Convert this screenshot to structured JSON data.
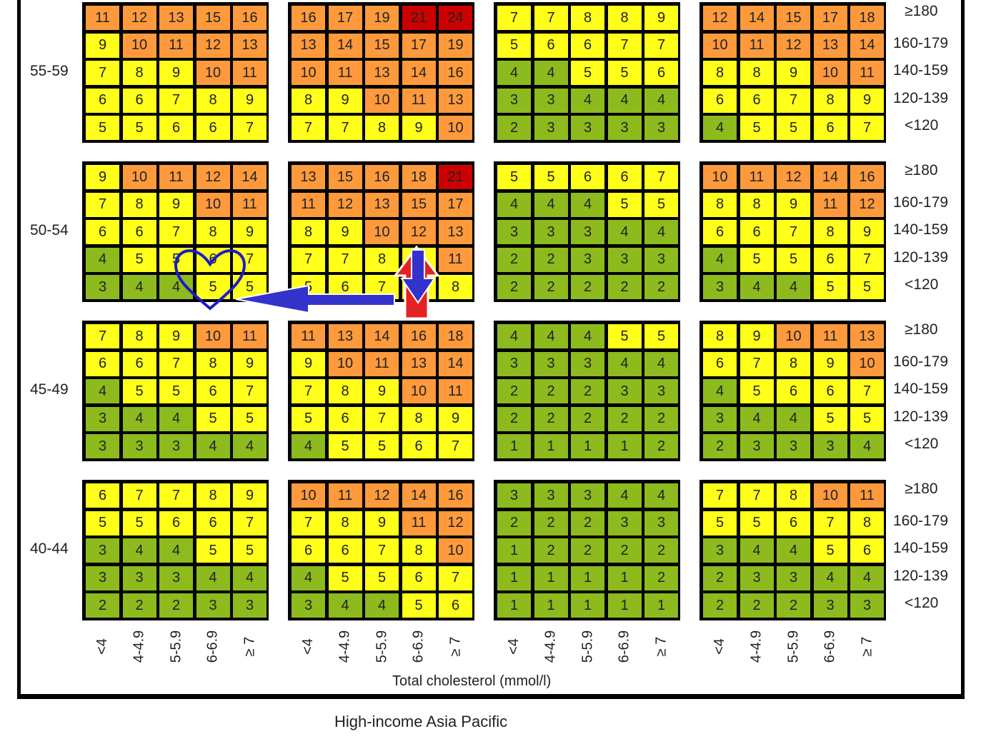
{
  "chart_data": {
    "type": "heatmap",
    "title": "",
    "caption": "High-income Asia Pacific",
    "xlabel": "Total cholesterol (mmol/l)",
    "cholesterol_categories": [
      "<4",
      "4-4.9",
      "5-5.9",
      "6-6.9",
      "≥ 7"
    ],
    "bp_categories": [
      "≥180",
      "160-179",
      "140-159",
      "120-139",
      "<120"
    ],
    "age_groups": [
      "55-59",
      "50-54",
      "45-49",
      "40-44"
    ],
    "colors": {
      "green": "#8dba1c",
      "yellow": "#ffff1a",
      "orange": "#ff9a3c",
      "red": "#cc0000"
    },
    "panels": [
      [
        [
          [
            11,
            12,
            13,
            15,
            16
          ],
          [
            9,
            10,
            11,
            12,
            13
          ],
          [
            7,
            8,
            9,
            10,
            11
          ],
          [
            6,
            6,
            7,
            8,
            9
          ],
          [
            5,
            5,
            6,
            6,
            7
          ]
        ],
        [
          [
            16,
            17,
            19,
            21,
            24
          ],
          [
            13,
            14,
            15,
            17,
            19
          ],
          [
            10,
            11,
            13,
            14,
            16
          ],
          [
            8,
            9,
            10,
            11,
            13
          ],
          [
            7,
            7,
            8,
            9,
            10
          ]
        ],
        [
          [
            7,
            7,
            8,
            8,
            9
          ],
          [
            5,
            6,
            6,
            7,
            7
          ],
          [
            4,
            4,
            5,
            5,
            6
          ],
          [
            3,
            3,
            4,
            4,
            4
          ],
          [
            2,
            3,
            3,
            3,
            3
          ]
        ],
        [
          [
            12,
            14,
            15,
            17,
            18
          ],
          [
            10,
            11,
            12,
            13,
            14
          ],
          [
            8,
            8,
            9,
            10,
            11
          ],
          [
            6,
            6,
            7,
            8,
            9
          ],
          [
            4,
            5,
            5,
            6,
            7
          ]
        ]
      ],
      [
        [
          [
            9,
            10,
            11,
            12,
            14
          ],
          [
            7,
            8,
            9,
            10,
            11
          ],
          [
            6,
            6,
            7,
            8,
            9
          ],
          [
            4,
            5,
            5,
            6,
            7
          ],
          [
            3,
            4,
            4,
            5,
            5
          ]
        ],
        [
          [
            13,
            15,
            16,
            18,
            21
          ],
          [
            11,
            12,
            13,
            15,
            17
          ],
          [
            8,
            9,
            10,
            12,
            13
          ],
          [
            7,
            7,
            8,
            9,
            11
          ],
          [
            5,
            6,
            7,
            7,
            8
          ]
        ],
        [
          [
            5,
            5,
            6,
            6,
            7
          ],
          [
            4,
            4,
            4,
            5,
            5
          ],
          [
            3,
            3,
            3,
            4,
            4
          ],
          [
            2,
            2,
            3,
            3,
            3
          ],
          [
            2,
            2,
            2,
            2,
            2
          ]
        ],
        [
          [
            10,
            11,
            12,
            14,
            16
          ],
          [
            8,
            8,
            9,
            11,
            12
          ],
          [
            6,
            6,
            7,
            8,
            9
          ],
          [
            4,
            5,
            5,
            6,
            7
          ],
          [
            3,
            4,
            4,
            5,
            5
          ]
        ]
      ],
      [
        [
          [
            7,
            8,
            9,
            10,
            11
          ],
          [
            6,
            6,
            7,
            8,
            9
          ],
          [
            4,
            5,
            5,
            6,
            7
          ],
          [
            3,
            4,
            4,
            5,
            5
          ],
          [
            3,
            3,
            3,
            4,
            4
          ]
        ],
        [
          [
            11,
            13,
            14,
            16,
            18
          ],
          [
            9,
            10,
            11,
            13,
            14
          ],
          [
            7,
            8,
            9,
            10,
            11
          ],
          [
            5,
            6,
            7,
            8,
            9
          ],
          [
            4,
            5,
            5,
            6,
            7
          ]
        ],
        [
          [
            4,
            4,
            4,
            5,
            5
          ],
          [
            3,
            3,
            3,
            4,
            4
          ],
          [
            2,
            2,
            2,
            3,
            3
          ],
          [
            2,
            2,
            2,
            2,
            2
          ],
          [
            1,
            1,
            1,
            1,
            2
          ]
        ],
        [
          [
            8,
            9,
            10,
            11,
            13
          ],
          [
            6,
            7,
            8,
            9,
            10
          ],
          [
            4,
            5,
            6,
            6,
            7
          ],
          [
            3,
            4,
            4,
            5,
            5
          ],
          [
            2,
            3,
            3,
            3,
            4
          ]
        ]
      ],
      [
        [
          [
            6,
            7,
            7,
            8,
            9
          ],
          [
            5,
            5,
            6,
            6,
            7
          ],
          [
            3,
            4,
            4,
            5,
            5
          ],
          [
            3,
            3,
            3,
            4,
            4
          ],
          [
            2,
            2,
            2,
            3,
            3
          ]
        ],
        [
          [
            10,
            11,
            12,
            14,
            16
          ],
          [
            7,
            8,
            9,
            11,
            12
          ],
          [
            6,
            6,
            7,
            8,
            10
          ],
          [
            4,
            5,
            5,
            6,
            7
          ],
          [
            3,
            4,
            4,
            5,
            6
          ]
        ],
        [
          [
            3,
            3,
            3,
            4,
            4
          ],
          [
            2,
            2,
            2,
            3,
            3
          ],
          [
            1,
            2,
            2,
            2,
            2
          ],
          [
            1,
            1,
            1,
            1,
            2
          ],
          [
            1,
            1,
            1,
            1,
            1
          ]
        ],
        [
          [
            7,
            7,
            8,
            10,
            11
          ],
          [
            5,
            5,
            6,
            7,
            8
          ],
          [
            3,
            4,
            4,
            5,
            6
          ],
          [
            2,
            3,
            3,
            4,
            4
          ],
          [
            2,
            2,
            2,
            3,
            3
          ]
        ]
      ]
    ]
  }
}
